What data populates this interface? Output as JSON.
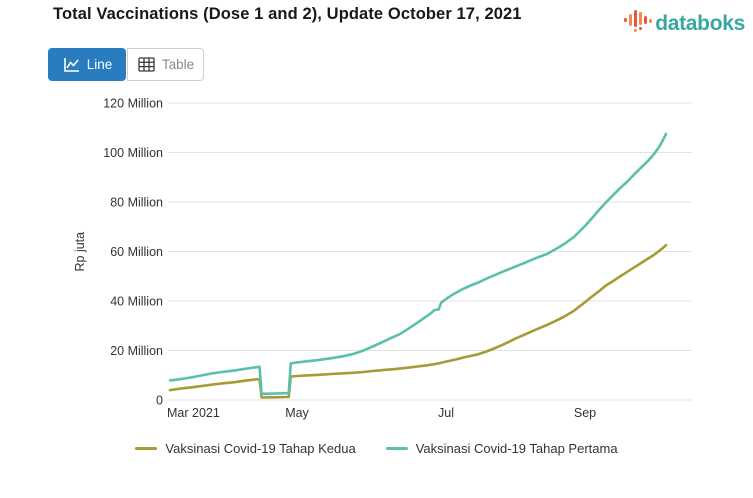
{
  "header": {
    "title": "Total Vaccinations (Dose 1 and 2), Update October 17, 2021",
    "logo_text": "databoks"
  },
  "toolbar": {
    "line_label": "Line",
    "table_label": "Table"
  },
  "colors": {
    "accent_blue": "#2a7cc0",
    "logo_teal": "#38a7a0",
    "logo_orange": "#f28a4e",
    "logo_red": "#e8563e",
    "gridline": "#e2e2e2",
    "axis_text": "#333333"
  },
  "chart_data": {
    "type": "line",
    "title": "Total Vaccinations (Dose 1 and 2), Update October 17, 2021",
    "xlabel": "",
    "ylabel": "Rp juta",
    "ylim": [
      0,
      120
    ],
    "x_unit": "days since 2021-03-01",
    "grid": true,
    "legend_position": "bottom",
    "y_ticks": [
      {
        "v": 0,
        "label": "0"
      },
      {
        "v": 20,
        "label": "20 Million"
      },
      {
        "v": 40,
        "label": "40 Million"
      },
      {
        "v": 60,
        "label": "60 Million"
      },
      {
        "v": 80,
        "label": "80 Million"
      },
      {
        "v": 100,
        "label": "100 Million"
      },
      {
        "v": 120,
        "label": "120 Million"
      }
    ],
    "x_ticks": [
      {
        "day": 0,
        "label": "Mar 2021"
      },
      {
        "day": 61,
        "label": "May"
      },
      {
        "day": 122,
        "label": "Jul"
      },
      {
        "day": 184,
        "label": "Sep"
      }
    ],
    "series": [
      {
        "name": "Vaksinasi Covid-19 Tahap Kedua",
        "color": "#a79a37",
        "points": [
          [
            0,
            4.0
          ],
          [
            5,
            4.6
          ],
          [
            10,
            5.1
          ],
          [
            15,
            5.6
          ],
          [
            20,
            6.2
          ],
          [
            25,
            6.7
          ],
          [
            31,
            7.2
          ],
          [
            36,
            7.8
          ],
          [
            40,
            8.2
          ],
          [
            43,
            8.5
          ],
          [
            44,
            1.0
          ],
          [
            50,
            1.1
          ],
          [
            57,
            1.2
          ],
          [
            58,
            9.5
          ],
          [
            61,
            9.7
          ],
          [
            66,
            10.0
          ],
          [
            70,
            10.2
          ],
          [
            75,
            10.5
          ],
          [
            80,
            10.8
          ],
          [
            84,
            11.0
          ],
          [
            88,
            11.3
          ],
          [
            92,
            11.7
          ],
          [
            96,
            12.1
          ],
          [
            100,
            12.4
          ],
          [
            106,
            13.0
          ],
          [
            110,
            13.5
          ],
          [
            114,
            14.0
          ],
          [
            118,
            14.6
          ],
          [
            122,
            15.5
          ],
          [
            126,
            16.3
          ],
          [
            130,
            17.2
          ],
          [
            136,
            18.4
          ],
          [
            140,
            19.6
          ],
          [
            144,
            21.0
          ],
          [
            148,
            22.6
          ],
          [
            153,
            24.8
          ],
          [
            157,
            26.4
          ],
          [
            162,
            28.4
          ],
          [
            167,
            30.3
          ],
          [
            171,
            32.0
          ],
          [
            175,
            33.8
          ],
          [
            179,
            36.0
          ],
          [
            184,
            39.5
          ],
          [
            188,
            41.8
          ],
          [
            192,
            44.0
          ],
          [
            196,
            46.3
          ],
          [
            200,
            48.1
          ],
          [
            204,
            50.0
          ],
          [
            208,
            51.8
          ],
          [
            212,
            53.6
          ],
          [
            216,
            55.4
          ],
          [
            220,
            57.2
          ],
          [
            223,
            58.6
          ],
          [
            226,
            60.2
          ],
          [
            228,
            61.3
          ],
          [
            230,
            62.6
          ]
        ]
      },
      {
        "name": "Vaksinasi Covid-19 Tahap Pertama",
        "color": "#5abfad",
        "points": [
          [
            0,
            7.9
          ],
          [
            5,
            8.4
          ],
          [
            10,
            9.1
          ],
          [
            15,
            9.9
          ],
          [
            20,
            10.7
          ],
          [
            25,
            11.3
          ],
          [
            31,
            11.9
          ],
          [
            36,
            12.6
          ],
          [
            40,
            13.1
          ],
          [
            43,
            13.4
          ],
          [
            44,
            2.5
          ],
          [
            50,
            2.6
          ],
          [
            57,
            2.8
          ],
          [
            58,
            14.8
          ],
          [
            61,
            15.2
          ],
          [
            66,
            15.7
          ],
          [
            70,
            16.2
          ],
          [
            75,
            16.9
          ],
          [
            80,
            17.7
          ],
          [
            84,
            18.6
          ],
          [
            88,
            19.9
          ],
          [
            92,
            21.6
          ],
          [
            96,
            23.4
          ],
          [
            100,
            25.3
          ],
          [
            103,
            26.6
          ],
          [
            106,
            28.4
          ],
          [
            109,
            30.4
          ],
          [
            112,
            32.4
          ],
          [
            114,
            33.8
          ],
          [
            116,
            35.2
          ],
          [
            117,
            36.2
          ],
          [
            119,
            36.6
          ],
          [
            120,
            39.3
          ],
          [
            122,
            40.8
          ],
          [
            125,
            42.6
          ],
          [
            129,
            44.6
          ],
          [
            133,
            46.3
          ],
          [
            136,
            47.3
          ],
          [
            140,
            49.0
          ],
          [
            144,
            50.6
          ],
          [
            148,
            52.1
          ],
          [
            153,
            53.9
          ],
          [
            157,
            55.4
          ],
          [
            162,
            57.3
          ],
          [
            167,
            59.0
          ],
          [
            171,
            61.0
          ],
          [
            175,
            63.2
          ],
          [
            179,
            65.8
          ],
          [
            184,
            70.3
          ],
          [
            188,
            73.5
          ],
          [
            192,
            76.8
          ],
          [
            196,
            79.9
          ],
          [
            200,
            82.8
          ],
          [
            204,
            85.6
          ],
          [
            208,
            88.3
          ],
          [
            212,
            91.2
          ],
          [
            216,
            94.0
          ],
          [
            220,
            96.8
          ],
          [
            223,
            99.2
          ],
          [
            226,
            102.2
          ],
          [
            228,
            104.7
          ],
          [
            230,
            107.5
          ]
        ]
      }
    ]
  }
}
